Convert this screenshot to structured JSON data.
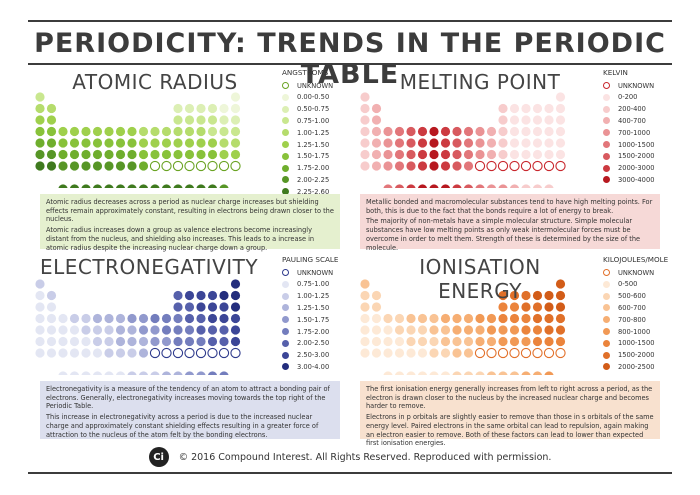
{
  "title": "PERIODICITY: TRENDS IN THE PERIODIC TABLE",
  "footer": {
    "logo_text": "Ci",
    "text": "© 2016 Compound Interest. All Rights Reserved. Reproduced with permission."
  },
  "panels": {
    "radius": {
      "title": "ATOMIC RADIUS",
      "legend_title": "ANGSTROMS",
      "legend": [
        {
          "label": "UNKNOWN",
          "color": "#ffffff",
          "stroke": "#6aa323"
        },
        {
          "label": "0.00-0.50",
          "color": "#eef6d9"
        },
        {
          "label": "0.50-0.75",
          "color": "#dcefb4"
        },
        {
          "label": "0.75-1.00",
          "color": "#c9e78f"
        },
        {
          "label": "1.00-1.25",
          "color": "#b5dc6c"
        },
        {
          "label": "1.25-1.50",
          "color": "#9fd04c"
        },
        {
          "label": "1.50-1.75",
          "color": "#88c23a"
        },
        {
          "label": "1.75-2.00",
          "color": "#6fae2d"
        },
        {
          "label": "2.00-2.25",
          "color": "#579626"
        },
        {
          "label": "2.25-2.60",
          "color": "#3f7a1e"
        }
      ],
      "description": [
        "Atomic radius decreases across a period as nuclear charge increases but shielding effects remain approximately constant, resulting in electrons being drawn closer to the nucleus.",
        "Atomic radius increases down a group as valence electrons become increasingly distant from the nucleus, and shielding also increases. This leads to a increase in atomic radius despite the increasing nuclear charge down a group."
      ],
      "desc_bg": "#e5f0cf"
    },
    "melting": {
      "title": "MELTING POINT",
      "legend_title": "KELVIN",
      "legend": [
        {
          "label": "UNKNOWN",
          "color": "#ffffff",
          "stroke": "#c8272d"
        },
        {
          "label": "0-200",
          "color": "#fbe3e3"
        },
        {
          "label": "200-400",
          "color": "#f7cccc"
        },
        {
          "label": "400-700",
          "color": "#f1b0b1"
        },
        {
          "label": "700-1000",
          "color": "#ea9395"
        },
        {
          "label": "1000-1500",
          "color": "#e2767a"
        },
        {
          "label": "1500-2000",
          "color": "#d85a5f"
        },
        {
          "label": "2000-3000",
          "color": "#cc3a40"
        },
        {
          "label": "3000-4000",
          "color": "#b7181f"
        }
      ],
      "description": [
        "Metallic bonded and macromolecular substances tend to have high melting points. For both, this is due to the fact that the bonds require a lot of energy to break.",
        "The majority of non-metals have a simple molecular structure. Simple molecular substances have low melting points as only weak intermolecular forces must be overcome in order to melt them. Strength of these is determined by the size of the molecule."
      ],
      "desc_bg": "#f6d9d7"
    },
    "electro": {
      "title": "ELECTRONEGATIVITY",
      "legend_title": "PAULING SCALE",
      "legend": [
        {
          "label": "UNKNOWN",
          "color": "#ffffff",
          "stroke": "#2e3a8c"
        },
        {
          "label": "0.75-1.00",
          "color": "#e3e6f3"
        },
        {
          "label": "1.00-1.25",
          "color": "#c9cde8"
        },
        {
          "label": "1.25-1.50",
          "color": "#aeb4db"
        },
        {
          "label": "1.50-1.75",
          "color": "#9199cd"
        },
        {
          "label": "1.75-2.00",
          "color": "#737dbd"
        },
        {
          "label": "2.00-2.50",
          "color": "#5660ab"
        },
        {
          "label": "2.50-3.00",
          "color": "#3c4697"
        },
        {
          "label": "3.00-4.00",
          "color": "#232d7d"
        }
      ],
      "description": [
        "Electronegativity is a measure of the tendency of an atom to attract a bonding pair of electrons. Generally, electronegativity increases moving towards the top right of the Periodic Table.",
        "This increase in electronegativity across a period is due to the increased nuclear charge and approximately constant shielding effects resulting in a greater force of attraction to the nucleus of the atom felt by the bonding electrons."
      ],
      "desc_bg": "#dcdfee"
    },
    "ionisation": {
      "title": "IONISATION ENERGY",
      "legend_title": "KILOJOULES/MOLE",
      "legend": [
        {
          "label": "UNKNOWN",
          "color": "#ffffff",
          "stroke": "#e2702a"
        },
        {
          "label": "0-500",
          "color": "#fde9d6"
        },
        {
          "label": "500-600",
          "color": "#fbd6b4"
        },
        {
          "label": "600-700",
          "color": "#f9c394"
        },
        {
          "label": "700-800",
          "color": "#f6ae73"
        },
        {
          "label": "800-1000",
          "color": "#f19955"
        },
        {
          "label": "1000-1500",
          "color": "#eb843c"
        },
        {
          "label": "1500-2000",
          "color": "#e07029"
        },
        {
          "label": "2000-2500",
          "color": "#d25c18"
        }
      ],
      "description": [
        "The first ionisation energy generally increases from left to right across a period, as the electron is drawn closer to the nucleus by the increased nuclear charge and becomes harder to remove.",
        "Electrons in p orbitals are slightly easier to remove than those in s orbitals of the same energy level. Paired electrons in the same orbital can lead to repulsion, again making an electron easier to remove. Both of these factors can lead to lower than expected first ionisation energies."
      ],
      "desc_bg": "#f8e1cf"
    }
  }
}
